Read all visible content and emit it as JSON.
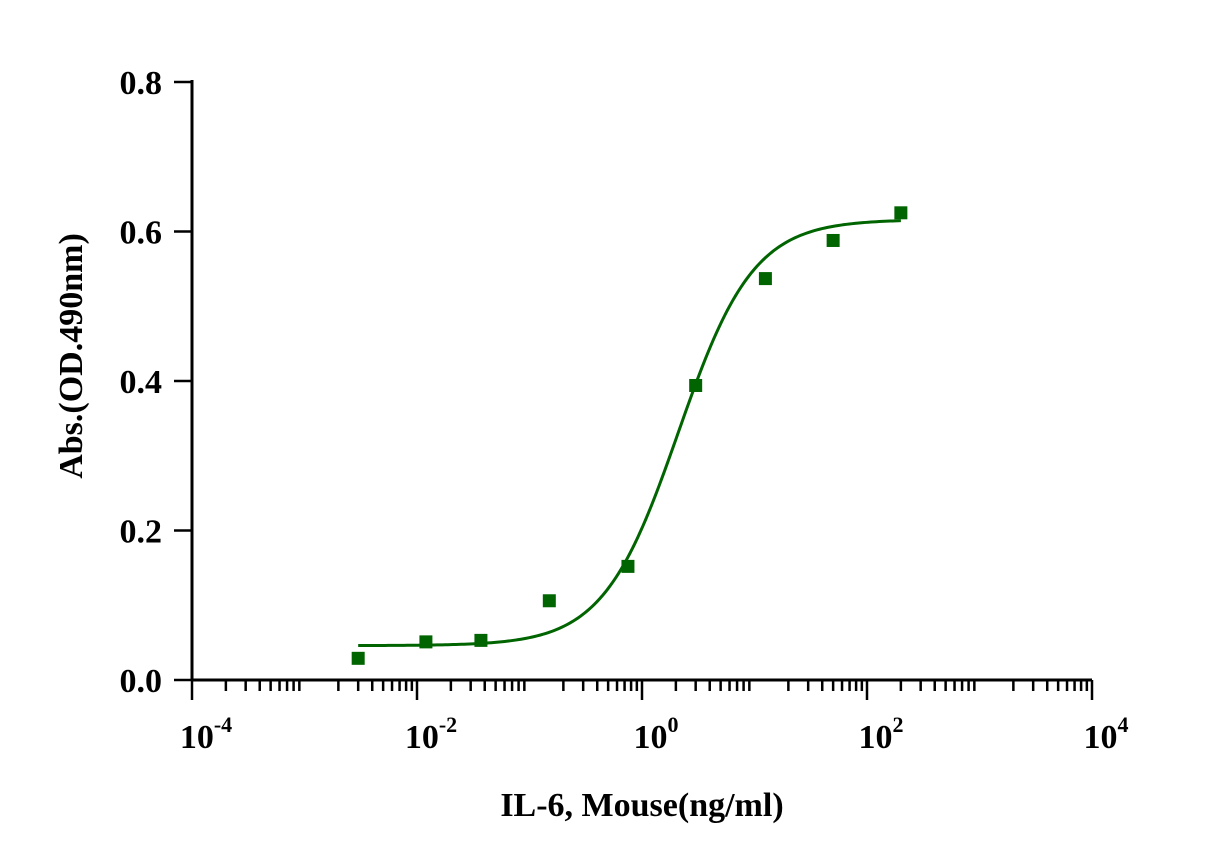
{
  "chart_data": {
    "type": "scatter",
    "xlabel": "IL-6, Mouse(ng/ml)",
    "ylabel": "Abs.(OD.490nm)",
    "x_scale": "log10",
    "xlim": [
      0.0001,
      10000
    ],
    "ylim": [
      0,
      0.8
    ],
    "x_ticks": [
      {
        "base": "10",
        "exp": "-4",
        "value": 0.0001
      },
      {
        "base": "10",
        "exp": "-2",
        "value": 0.01
      },
      {
        "base": "10",
        "exp": "0",
        "value": 1
      },
      {
        "base": "10",
        "exp": "2",
        "value": 100
      },
      {
        "base": "10",
        "exp": "4",
        "value": 10000
      }
    ],
    "y_ticks": [
      "0.0",
      "0.2",
      "0.4",
      "0.6",
      "0.8"
    ],
    "grid": false,
    "color": "#006400",
    "points": [
      {
        "x": 0.003,
        "y": 0.029
      },
      {
        "x": 0.012,
        "y": 0.051
      },
      {
        "x": 0.037,
        "y": 0.053
      },
      {
        "x": 0.15,
        "y": 0.106
      },
      {
        "x": 0.75,
        "y": 0.152
      },
      {
        "x": 3.0,
        "y": 0.394
      },
      {
        "x": 12.5,
        "y": 0.537
      },
      {
        "x": 50,
        "y": 0.588
      },
      {
        "x": 200,
        "y": 0.625
      }
    ],
    "fit": {
      "model": "4PL",
      "bottom": 0.046,
      "top": 0.616,
      "ec50": 2.1,
      "hill": 1.3,
      "x_range": [
        0.003,
        200
      ]
    }
  }
}
